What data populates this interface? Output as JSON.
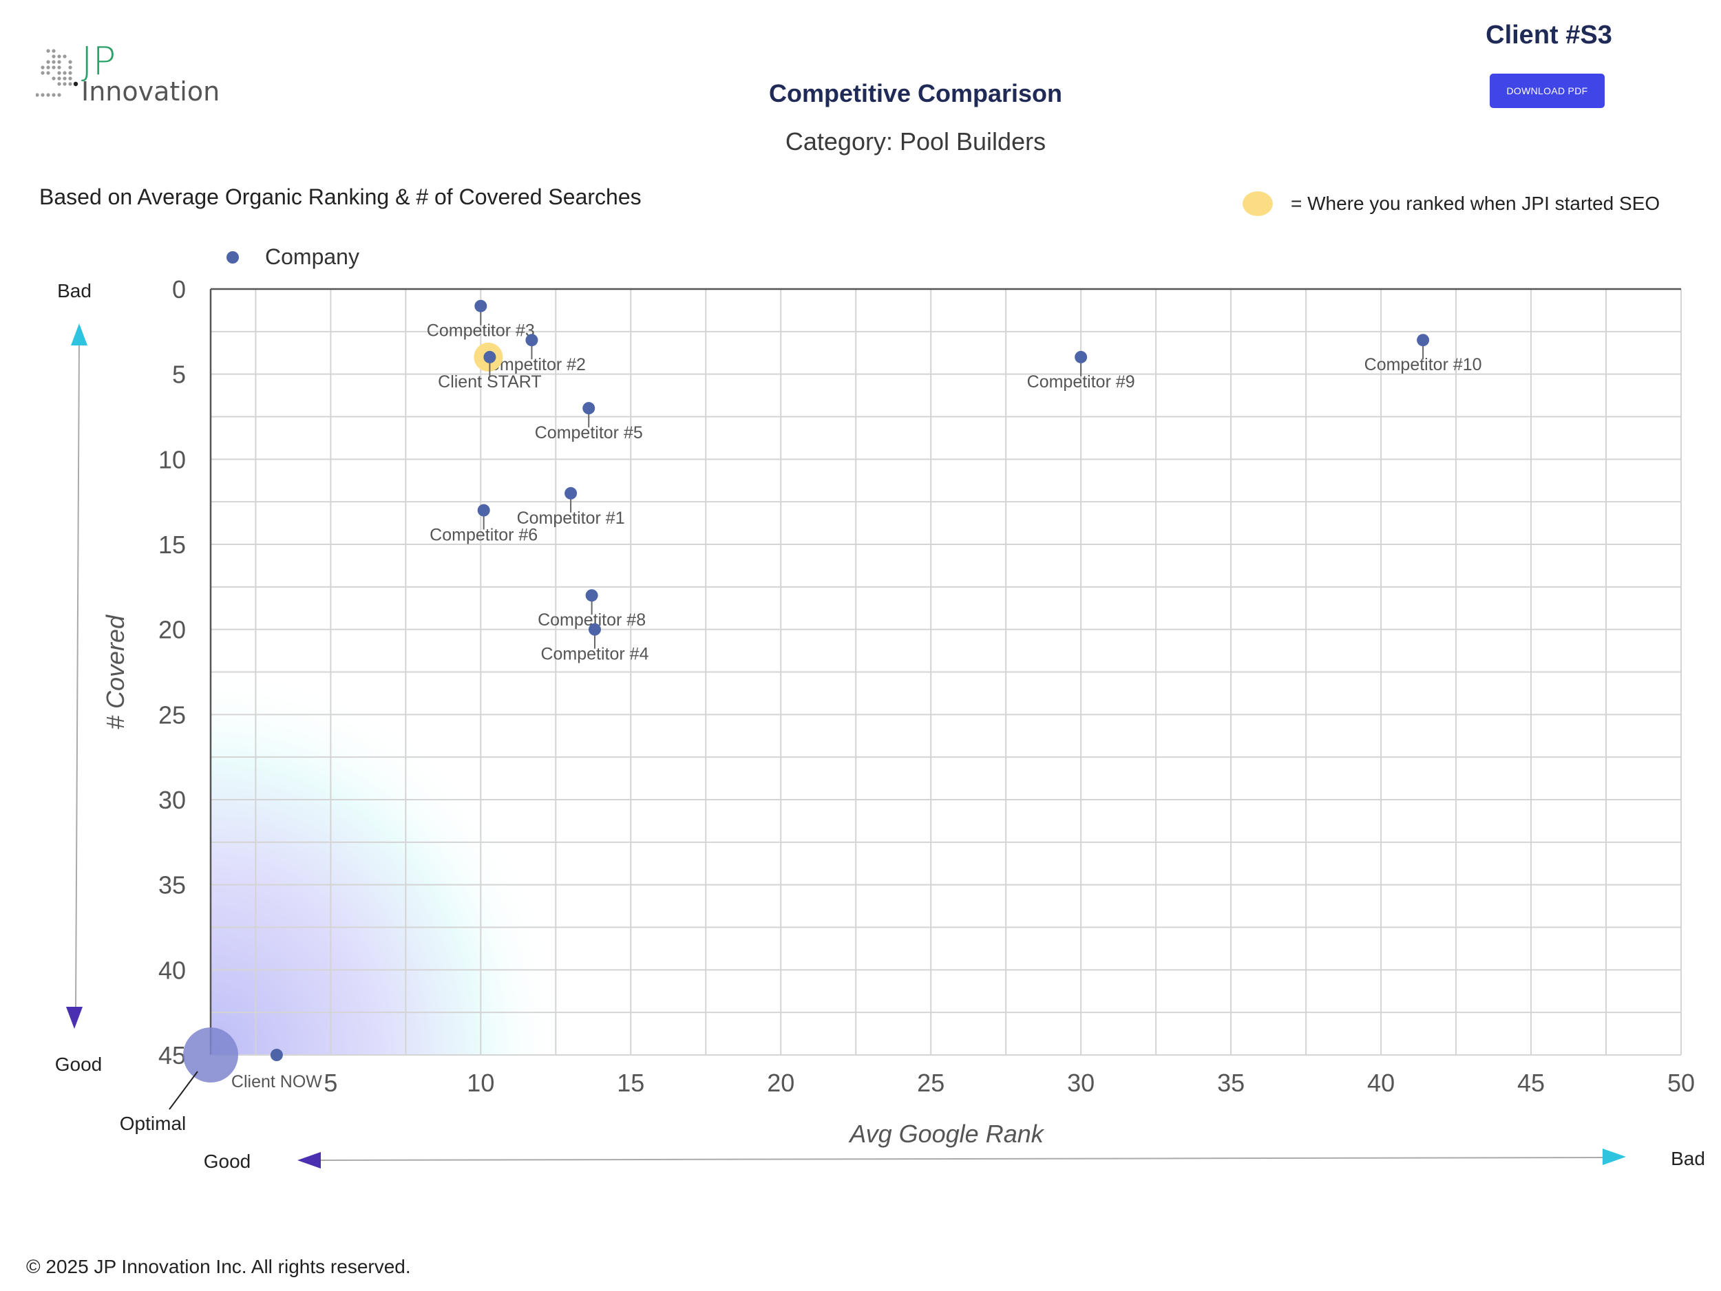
{
  "header": {
    "logo_jp": "JP",
    "logo_innovation": "Innovation",
    "client_title": "Client #S3",
    "download_label": "DOWNLOAD PDF",
    "basis_text": "Based on Average Organic Ranking & # of Covered Searches",
    "legend_start_text": "= Where you ranked when JPI started SEO",
    "legend_company_text": "Company"
  },
  "colors": {
    "point": "#4d64a8",
    "start_highlight": "#fbde84",
    "optimal_circle": "#7f86cf",
    "title": "#1f2a56",
    "button": "#3f45e6",
    "arrow_bad": "#2ec4e0",
    "arrow_good": "#4a2fb0"
  },
  "chart_data": {
    "type": "scatter",
    "title": "Competitive Comparison",
    "subtitle": "Category: Pool Builders",
    "xlabel": "Avg Google Rank",
    "ylabel": "# Covered",
    "xlim": [
      1,
      50
    ],
    "ylim": [
      0,
      45
    ],
    "y_inverted": true,
    "x_ticks": [
      5,
      10,
      15,
      20,
      25,
      30,
      35,
      40,
      45,
      50
    ],
    "y_ticks": [
      0,
      5,
      10,
      15,
      20,
      25,
      30,
      35,
      40,
      45
    ],
    "grid": true,
    "legend": "top-left",
    "series": [
      {
        "name": "Company",
        "points": [
          {
            "label": "Competitor #3",
            "x": 10,
            "y": 1
          },
          {
            "label": "Competitor #2",
            "x": 11.7,
            "y": 3
          },
          {
            "label": "Client START",
            "x": 10.3,
            "y": 4,
            "highlight": true
          },
          {
            "label": "Competitor #5",
            "x": 13.6,
            "y": 7
          },
          {
            "label": "Competitor #1",
            "x": 13,
            "y": 12
          },
          {
            "label": "Competitor #6",
            "x": 10.1,
            "y": 13
          },
          {
            "label": "Competitor #8",
            "x": 13.7,
            "y": 18
          },
          {
            "label": "Competitor #4",
            "x": 13.8,
            "y": 20
          },
          {
            "label": "Competitor #9",
            "x": 30,
            "y": 4
          },
          {
            "label": "Competitor #10",
            "x": 41.4,
            "y": 3
          },
          {
            "label": "Client NOW",
            "x": 3.2,
            "y": 45
          }
        ]
      }
    ],
    "annotations": {
      "optimal": "Optimal",
      "y_top": "Bad",
      "y_bottom": "Good",
      "x_left": "Good",
      "x_right": "Bad"
    }
  },
  "footer": {
    "copyright": "© 2025 JP Innovation Inc.  All rights reserved."
  }
}
